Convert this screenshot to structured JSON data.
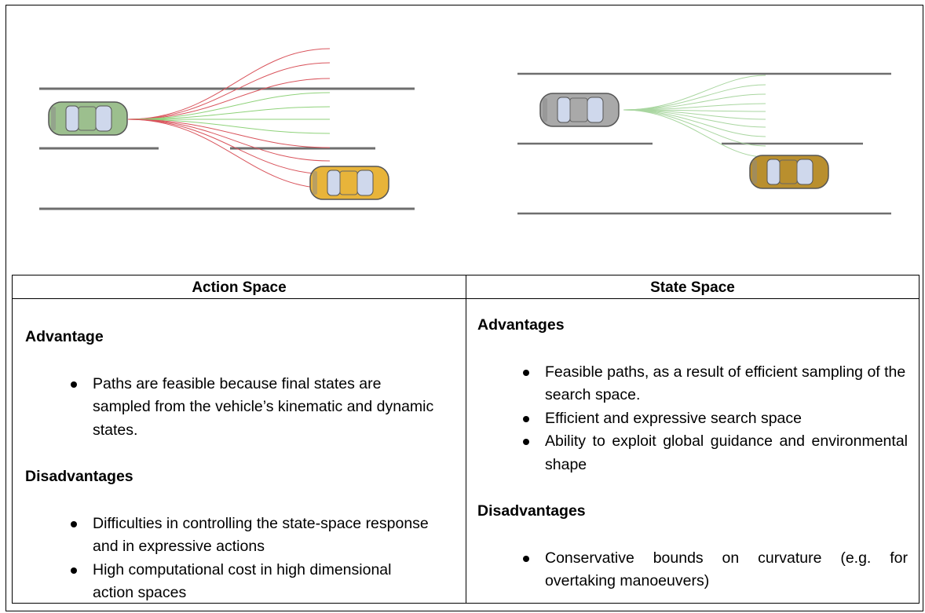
{
  "table": {
    "headers": [
      "Action Space",
      "State Space"
    ],
    "cells": [
      {
        "sections": [
          {
            "heading": "Advantage",
            "items": [
              "Paths are feasible because final states are sampled from the vehicle’s kinematic and dynamic states."
            ]
          },
          {
            "heading": "Disadvantages",
            "items": [
              "Difficulties in controlling the state-space response and in expressive actions",
              "High computational cost in high dimensional action spaces"
            ]
          }
        ]
      },
      {
        "sections": [
          {
            "heading": "Advantages",
            "items": [
              "Feasible paths, as a result of efficient sampling of the search space.",
              "Efficient and expressive search space",
              "Ability to exploit global guidance and environmental shape"
            ]
          },
          {
            "heading": "Disadvantages",
            "items": [
              "Conservative bounds on curvature (e.g. for overtaking manoeuvers)"
            ]
          }
        ]
      }
    ]
  }
}
